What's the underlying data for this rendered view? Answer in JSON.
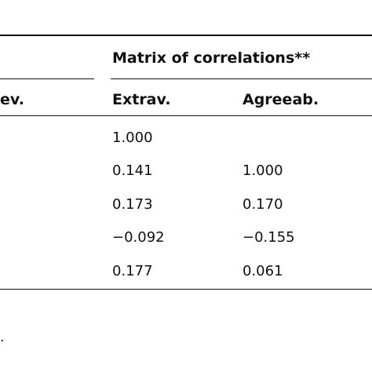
{
  "table": {
    "group_header": "Matrix of correlations**",
    "partial_left_header": "ev.",
    "columns": [
      "Extrav.",
      "Agreeab."
    ],
    "rows": [
      {
        "extrav": "1.000",
        "agreeab": ""
      },
      {
        "extrav": "0.141",
        "agreeab": "1.000"
      },
      {
        "extrav": "0.173",
        "agreeab": "0.170"
      },
      {
        "extrav": "−0.092",
        "agreeab": "−0.155"
      },
      {
        "extrav": "0.177",
        "agreeab": "0.061"
      }
    ]
  },
  "footnote_fragment": "."
}
